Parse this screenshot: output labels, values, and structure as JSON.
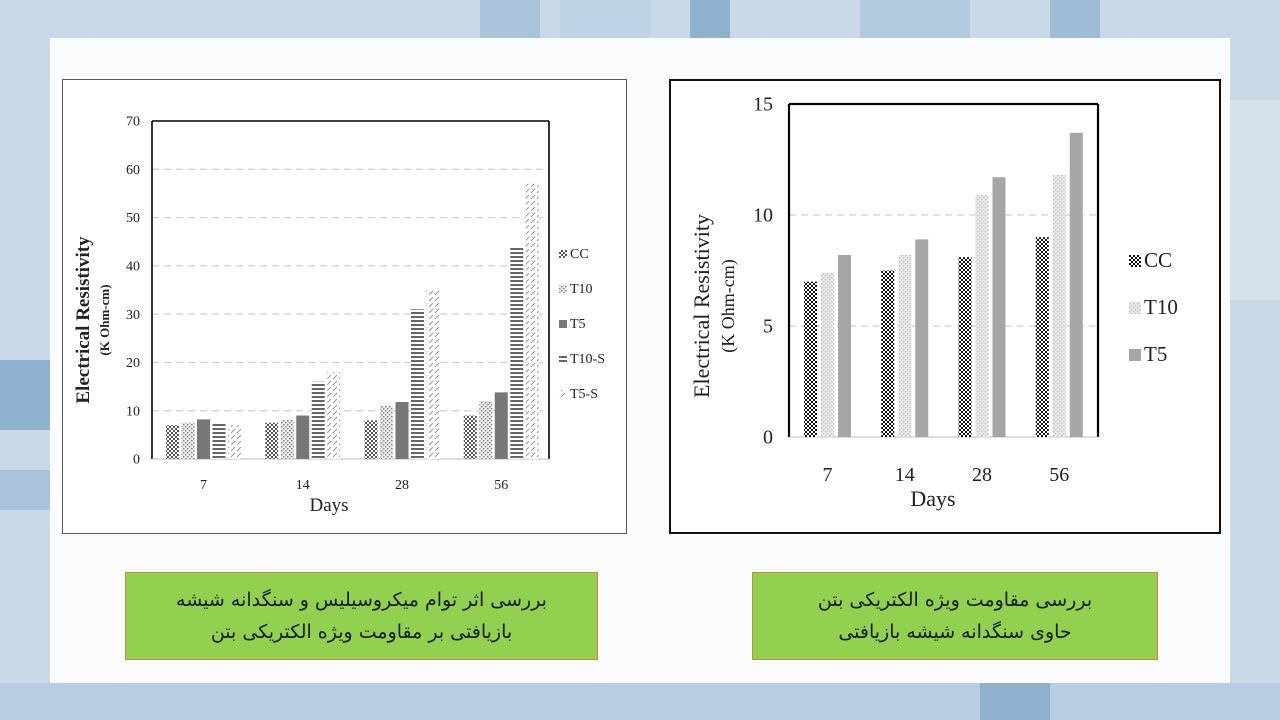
{
  "chart_data": [
    {
      "type": "bar",
      "title": "",
      "xlabel": "Days",
      "ylabel": "Electrical Resistivity",
      "ylabel_unit": "(K Ohm-cm)",
      "categories": [
        "7",
        "14",
        "28",
        "56"
      ],
      "ylim": [
        0,
        70
      ],
      "yticks": [
        "0",
        "10",
        "20",
        "30",
        "40",
        "50",
        "60",
        "70"
      ],
      "grid": true,
      "legend": "right",
      "series": [
        {
          "name": "CC",
          "values": [
            7,
            7.5,
            8,
            9
          ],
          "color": "#555555",
          "pattern": "checker"
        },
        {
          "name": "T10",
          "values": [
            7.5,
            8.2,
            11,
            12
          ],
          "color": "#888888",
          "pattern": "dots"
        },
        {
          "name": "T5",
          "values": [
            8.2,
            9,
            11.8,
            13.8
          ],
          "color": "#777777",
          "pattern": "solid"
        },
        {
          "name": "T10-S",
          "values": [
            7.5,
            16,
            31,
            44
          ],
          "color": "#666666",
          "pattern": "hstripe"
        },
        {
          "name": "T5-S",
          "values": [
            7,
            18,
            35,
            57
          ],
          "color": "#999999",
          "pattern": "dash"
        }
      ]
    },
    {
      "type": "bar",
      "title": "",
      "xlabel": "Days",
      "ylabel": "Electrical Resistivity",
      "ylabel_unit": "(K Ohm-cm)",
      "categories": [
        "7",
        "14",
        "28",
        "56"
      ],
      "ylim": [
        0,
        15
      ],
      "yticks": [
        "0",
        "5",
        "10",
        "15"
      ],
      "grid": true,
      "legend": "right",
      "series": [
        {
          "name": "CC",
          "values": [
            7,
            7.5,
            8.1,
            9
          ],
          "color": "#111111",
          "pattern": "checker"
        },
        {
          "name": "T10",
          "values": [
            7.4,
            8.2,
            10.9,
            11.8
          ],
          "color": "#bbbbbb",
          "pattern": "dots"
        },
        {
          "name": "T5",
          "values": [
            8.2,
            8.9,
            11.7,
            13.7
          ],
          "color": "#a6a6a6",
          "pattern": "solid"
        }
      ]
    }
  ],
  "captions": {
    "left_line1": "بررسی اثر توام میکروسیلیس و سنگدانه شیشه",
    "left_line2": "بازیافتی بر مقاومت ویژه الکتریکی بتن",
    "right_line1": "بررسی مقاومت ویژه الکتریکی بتن",
    "right_line2": "حاوی سنگدانه شیشه بازیافتی"
  }
}
